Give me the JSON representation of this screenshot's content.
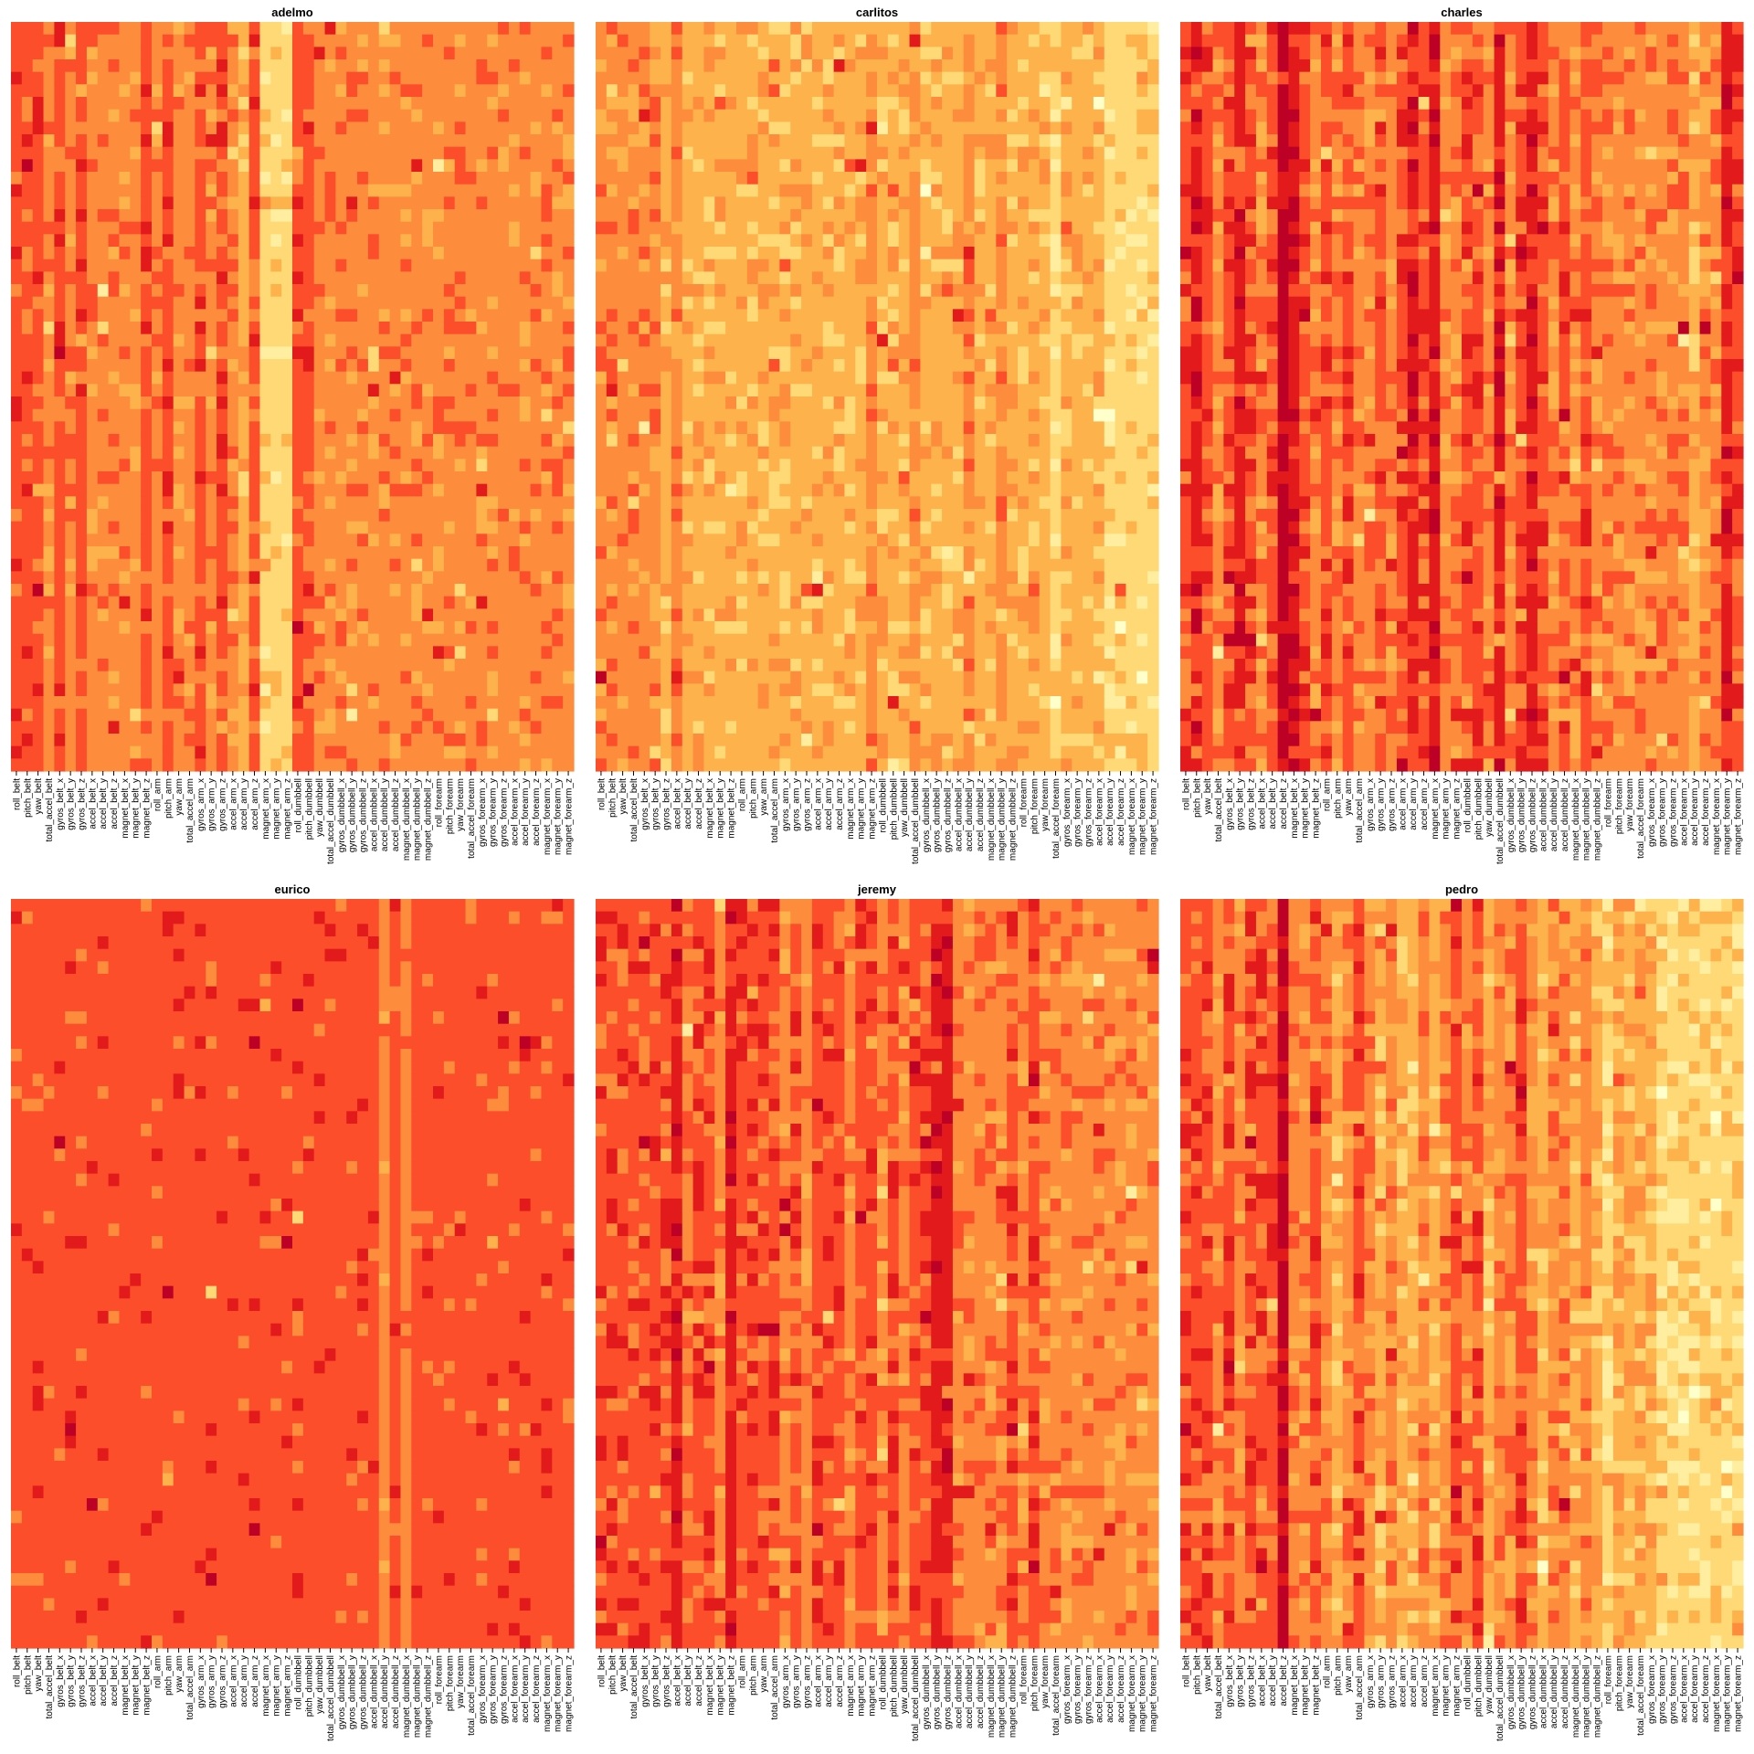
{
  "chart_data": {
    "type": "heatmap",
    "layout": "2 rows x 3 columns of heatmap panels, one per participant",
    "color_scale": [
      "#ffffcc",
      "#ffeda0",
      "#fed976",
      "#feb24c",
      "#fd8d3c",
      "#fc4e2a",
      "#e31a1c",
      "#bd0026"
    ],
    "variables": [
      "roll_belt",
      "pitch_belt",
      "yaw_belt",
      "total_accel_belt",
      "gyros_belt_x",
      "gyros_belt_y",
      "gyros_belt_z",
      "accel_belt_x",
      "accel_belt_y",
      "accel_belt_z",
      "magnet_belt_x",
      "magnet_belt_y",
      "magnet_belt_z",
      "roll_arm",
      "pitch_arm",
      "yaw_arm",
      "total_accel_arm",
      "gyros_arm_x",
      "gyros_arm_y",
      "gyros_arm_z",
      "accel_arm_x",
      "accel_arm_y",
      "accel_arm_z",
      "magnet_arm_x",
      "magnet_arm_y",
      "magnet_arm_z",
      "roll_dumbbell",
      "pitch_dumbbell",
      "yaw_dumbbell",
      "total_accel_dumbbell",
      "gyros_dumbbell_x",
      "gyros_dumbbell_y",
      "gyros_dumbbell_z",
      "accel_dumbbell_x",
      "accel_dumbbell_y",
      "accel_dumbbell_z",
      "magnet_dumbbell_x",
      "magnet_dumbbell_y",
      "magnet_dumbbell_z",
      "roll_forearm",
      "pitch_forearm",
      "yaw_forearm",
      "total_accel_forearm",
      "gyros_forearm_x",
      "gyros_forearm_y",
      "gyros_forearm_z",
      "accel_forearm_x",
      "accel_forearm_y",
      "accel_forearm_z",
      "magnet_forearm_x",
      "magnet_forearm_y",
      "magnet_forearm_z"
    ],
    "panels": [
      {
        "title": "adelmo",
        "column_levels": [
          5,
          5,
          5,
          4,
          5,
          4,
          5,
          4,
          4,
          4,
          4,
          4,
          5,
          4,
          5,
          4,
          4,
          5,
          4,
          5,
          4,
          3,
          5,
          2,
          2,
          2,
          5,
          5,
          4,
          4,
          4,
          4,
          4,
          4,
          4,
          4,
          4,
          4,
          4,
          4,
          4,
          4,
          4,
          4,
          4,
          4,
          4,
          4,
          4,
          4,
          4,
          4
        ],
        "noise": 0.22
      },
      {
        "title": "carlitos",
        "column_levels": [
          4,
          4,
          4,
          4,
          4,
          4,
          3,
          4,
          3,
          3,
          3,
          3,
          3,
          3,
          3,
          3,
          3,
          3,
          3,
          3,
          3,
          3,
          3,
          3,
          3,
          4,
          3,
          3,
          3,
          4,
          3,
          3,
          3,
          3,
          4,
          3,
          3,
          4,
          3,
          3,
          3,
          3,
          2,
          3,
          3,
          3,
          3,
          2,
          2,
          2,
          2,
          2
        ],
        "noise": 0.3
      },
      {
        "title": "charles",
        "column_levels": [
          5,
          6,
          5,
          4,
          5,
          6,
          5,
          4,
          5,
          7,
          6,
          5,
          4,
          5,
          4,
          5,
          4,
          4,
          5,
          4,
          5,
          6,
          5,
          6,
          4,
          4,
          5,
          5,
          4,
          6,
          4,
          5,
          6,
          5,
          4,
          5,
          4,
          5,
          4,
          4,
          4,
          4,
          4,
          4,
          4,
          4,
          4,
          3,
          4,
          4,
          6,
          5
        ],
        "noise": 0.35
      },
      {
        "title": "eurico",
        "column_levels": [
          5,
          5,
          5,
          5,
          5,
          5,
          5,
          5,
          5,
          5,
          5,
          5,
          5,
          5,
          5,
          5,
          5,
          5,
          5,
          5,
          5,
          5,
          5,
          5,
          5,
          5,
          5,
          5,
          5,
          5,
          5,
          5,
          5,
          5,
          4,
          5,
          4,
          5,
          5,
          5,
          5,
          5,
          5,
          5,
          5,
          5,
          5,
          5,
          5,
          5,
          5,
          5
        ],
        "noise": 0.08
      },
      {
        "title": "jeremy",
        "column_levels": [
          5,
          5,
          5,
          5,
          5,
          5,
          5,
          6,
          4,
          5,
          5,
          4,
          6,
          5,
          5,
          5,
          5,
          4,
          5,
          4,
          5,
          5,
          5,
          4,
          5,
          5,
          4,
          5,
          4,
          5,
          5,
          6,
          6,
          4,
          4,
          4,
          4,
          4,
          5,
          4,
          5,
          4,
          4,
          4,
          4,
          4,
          4,
          4,
          4,
          4,
          4,
          4
        ],
        "noise": 0.3
      },
      {
        "title": "pedro",
        "column_levels": [
          5,
          5,
          5,
          4,
          5,
          4,
          5,
          5,
          5,
          7,
          4,
          4,
          5,
          4,
          3,
          4,
          5,
          4,
          3,
          4,
          3,
          3,
          4,
          3,
          4,
          5,
          4,
          5,
          3,
          4,
          4,
          5,
          4,
          3,
          4,
          4,
          3,
          4,
          3,
          2,
          3,
          3,
          3,
          3,
          2,
          2,
          2,
          2,
          2,
          2,
          2,
          2
        ],
        "noise": 0.38
      }
    ]
  }
}
